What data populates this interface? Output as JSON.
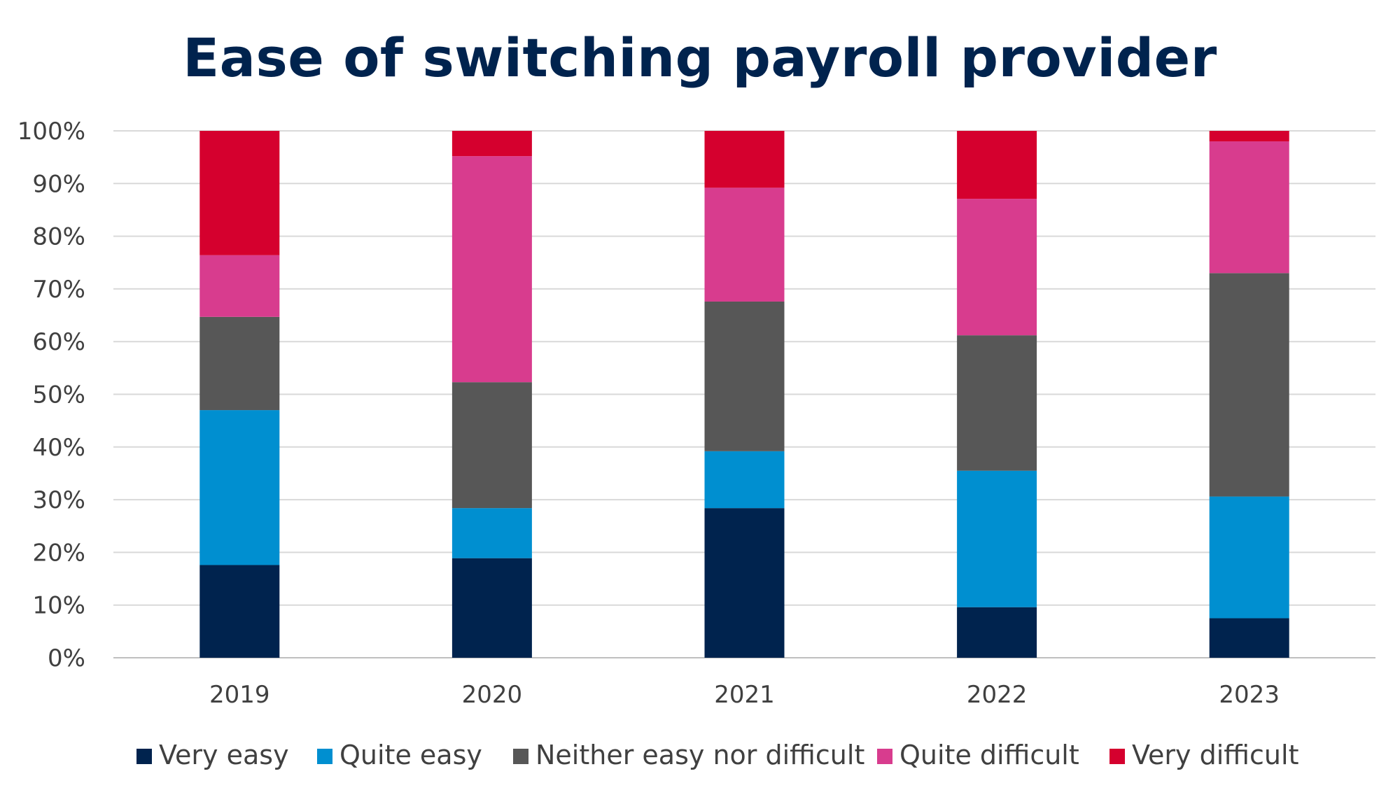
{
  "chart_data": {
    "type": "bar",
    "stacked": true,
    "title": "Ease of switching payroll provider",
    "xlabel": "",
    "ylabel": "",
    "categories": [
      "2019",
      "2020",
      "2021",
      "2022",
      "2023"
    ],
    "ylim": [
      0,
      100
    ],
    "yticks": [
      0,
      10,
      20,
      30,
      40,
      50,
      60,
      70,
      80,
      90,
      100
    ],
    "ytick_labels": [
      "0%",
      "10%",
      "20%",
      "30%",
      "40%",
      "50%",
      "60%",
      "70%",
      "80%",
      "90%",
      "100%"
    ],
    "grid": true,
    "legend_position": "bottom",
    "series": [
      {
        "name": "Very easy",
        "color": "#00234e",
        "values": [
          17.6,
          18.9,
          28.4,
          9.6,
          7.5
        ]
      },
      {
        "name": "Quite easy",
        "color": "#008fd0",
        "values": [
          29.4,
          9.5,
          10.8,
          25.9,
          23.1
        ]
      },
      {
        "name": "Neither easy nor difficult",
        "color": "#575757",
        "values": [
          17.7,
          23.9,
          28.4,
          25.7,
          42.4
        ]
      },
      {
        "name": "Quite difficult",
        "color": "#d83c8e",
        "values": [
          11.7,
          42.9,
          21.6,
          25.9,
          25.0
        ]
      },
      {
        "name": "Very difficult",
        "color": "#d5002e",
        "values": [
          23.6,
          4.8,
          10.8,
          12.9,
          2.0
        ]
      }
    ]
  }
}
